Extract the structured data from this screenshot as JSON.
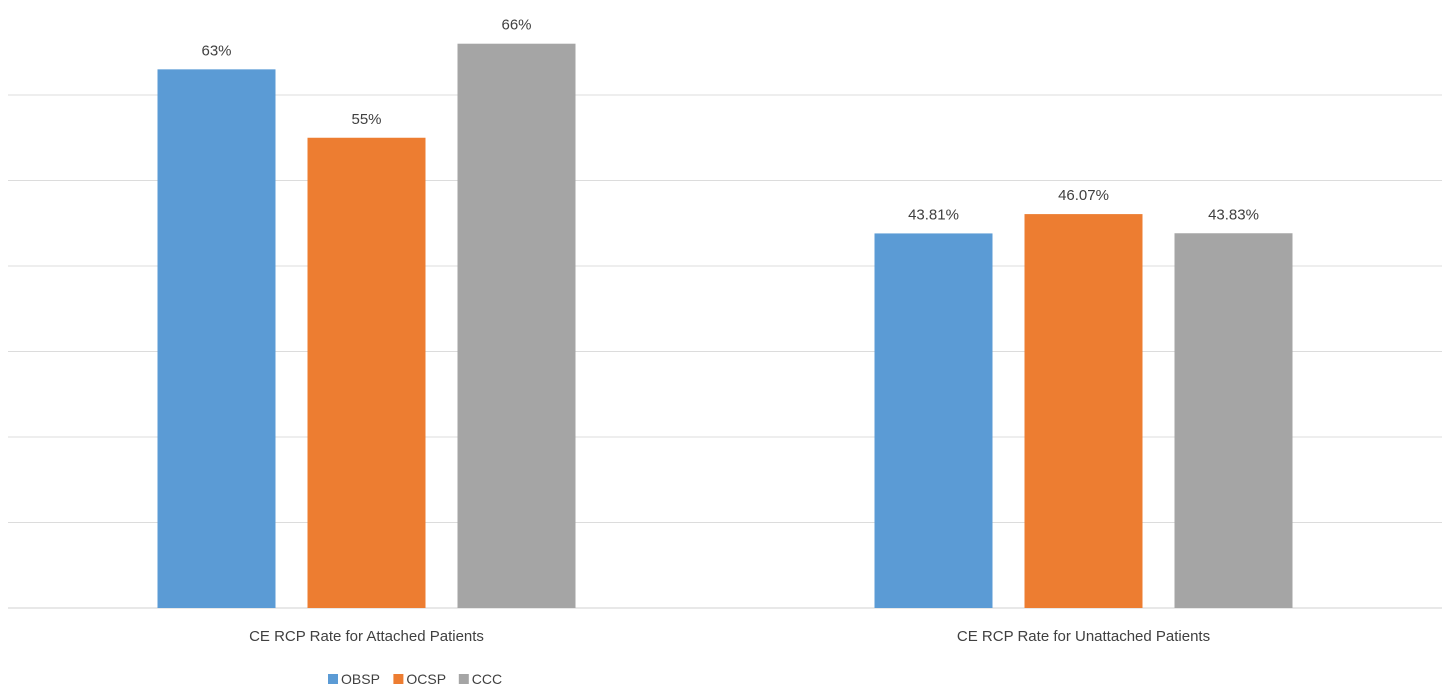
{
  "chart_data": {
    "type": "bar",
    "title": "",
    "xlabel": "",
    "ylabel": "",
    "categories": [
      "CE RCP Rate for Attached Patients",
      "CE RCP Rate for Unattached Patients"
    ],
    "series": [
      {
        "name": "OBSP",
        "color": "#5B9BD5",
        "values": [
          63,
          43.81
        ],
        "labels": [
          "63%",
          "43.81%"
        ]
      },
      {
        "name": "OCSP",
        "color": "#ED7D31",
        "values": [
          55,
          46.07
        ],
        "labels": [
          "55%",
          "46.07%"
        ]
      },
      {
        "name": "CCC",
        "color": "#A5A5A5",
        "values": [
          66,
          43.83
        ],
        "labels": [
          "66%",
          "43.83%"
        ]
      }
    ],
    "ylim": [
      0,
      70
    ],
    "y_gridlines": [
      0,
      10,
      20,
      30,
      40,
      50,
      60
    ],
    "grid": true,
    "y_tick_labels_shown": false,
    "legend": "bottom-left"
  }
}
